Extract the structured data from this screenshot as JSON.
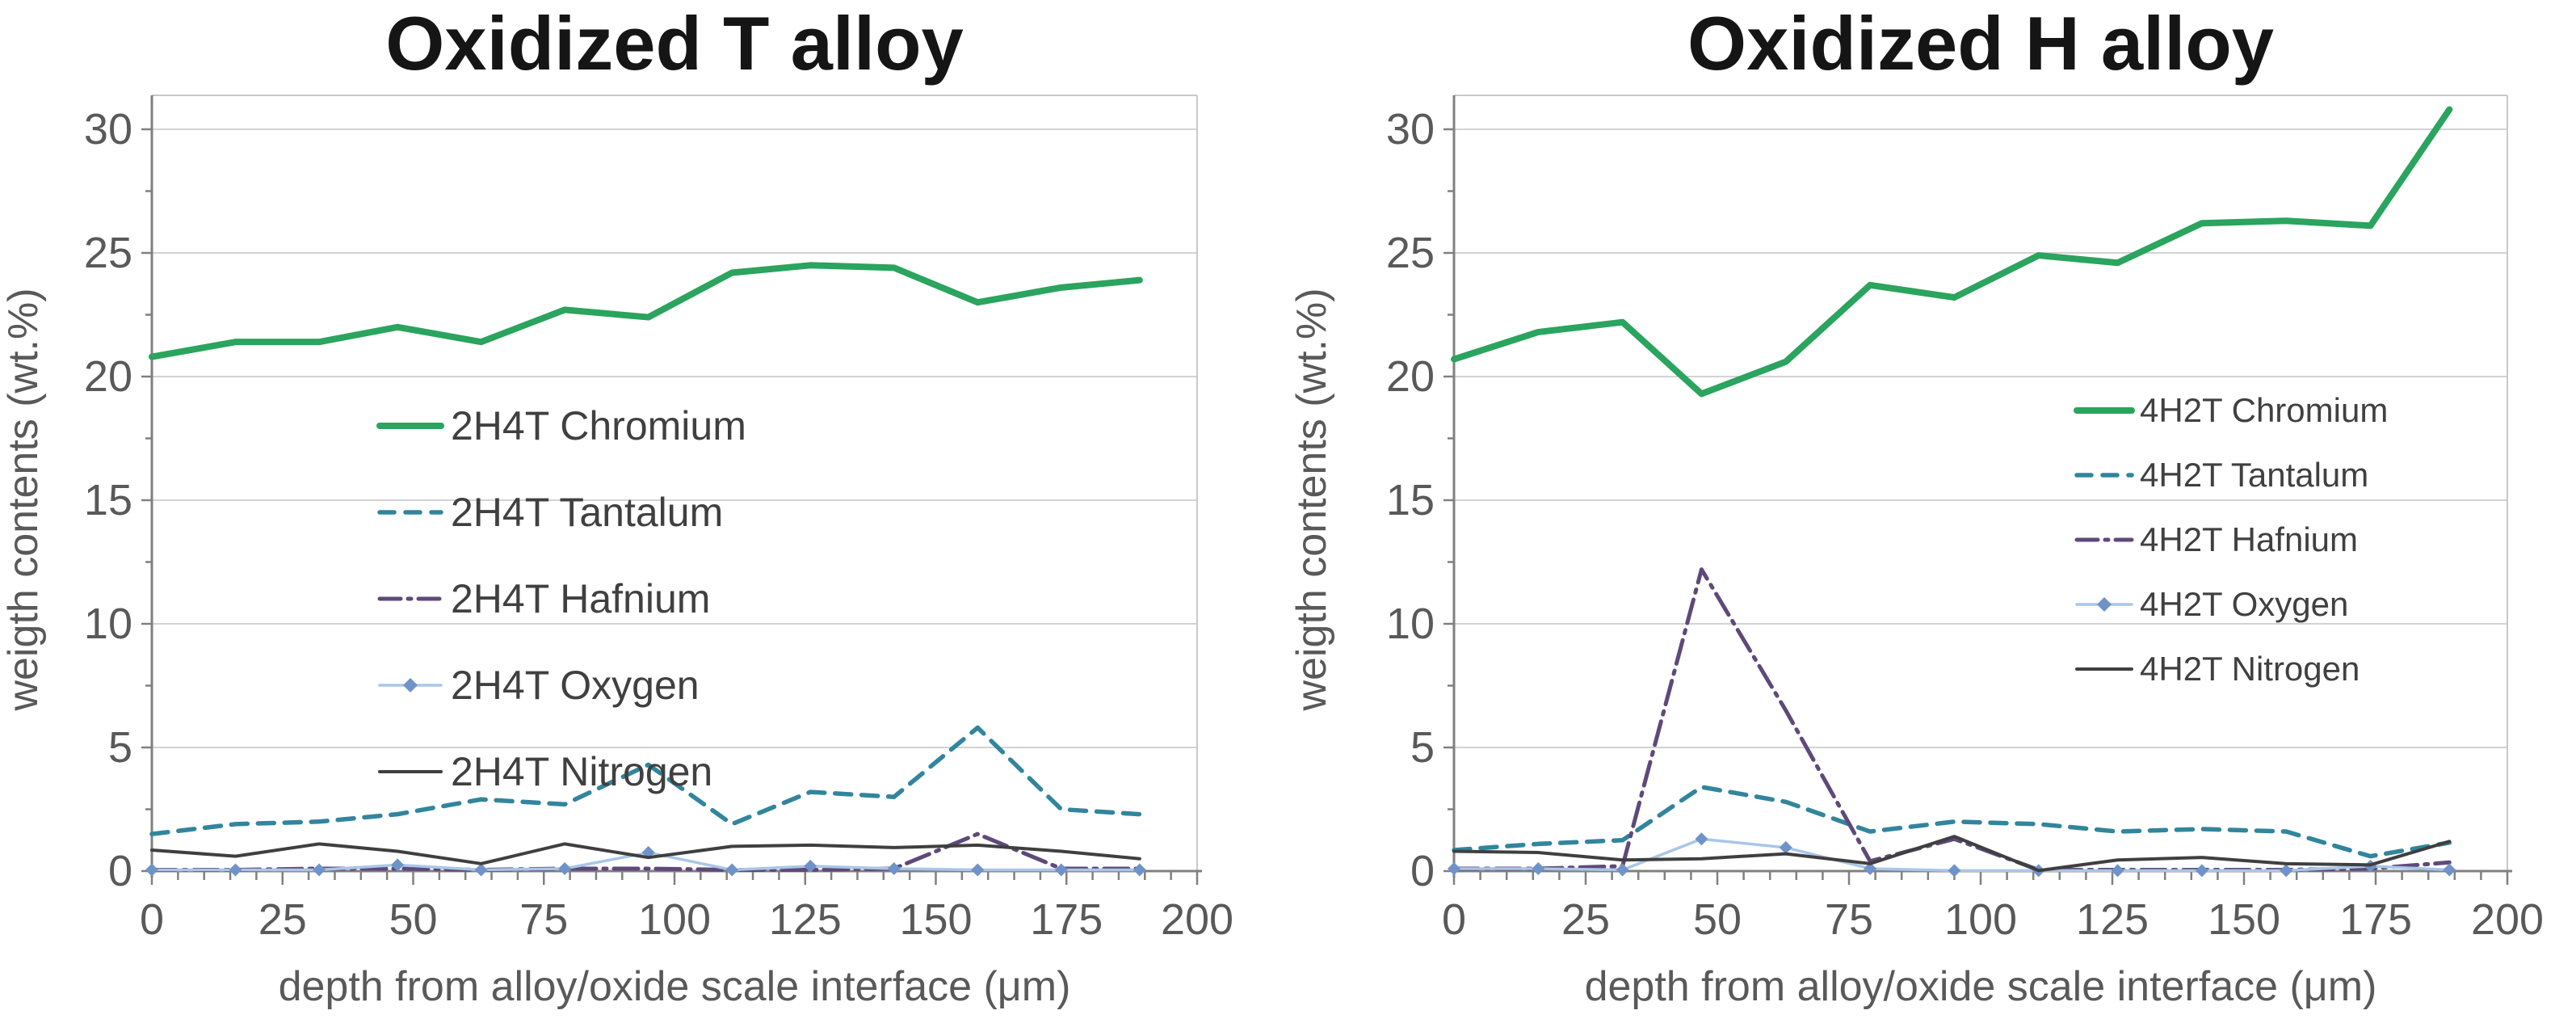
{
  "page": {
    "background": "#ffffff"
  },
  "colors": {
    "chromium": "#2aa45e",
    "tantalum": "#31859c",
    "hafnium": "#5f497a",
    "oxygen_line": "#a9c6e8",
    "oxygen_marker": "#6f93c9",
    "nitrogen": "#3f3f3f",
    "gridline": "#d3d3d3",
    "plot_border": "#c9c9c9",
    "axis": "#808080",
    "tick_label": "#595959",
    "axis_title": "#595959",
    "chart_title": "#151515",
    "legend_label": "#404040"
  },
  "chart_data": [
    {
      "type": "line",
      "title": "Oxidized T alloy",
      "xlabel": "depth from alloy/oxide scale interface (μm)",
      "ylabel": "weigth contents (wt.%)",
      "xlim": [
        0,
        200
      ],
      "ylim": [
        0,
        30
      ],
      "x_tick_step": 25,
      "x_minor_step": 5,
      "y_tick_step": 5,
      "y_minor_step": 2.5,
      "grid": "horizontal",
      "legend_position": "inside-left",
      "x": [
        0,
        16,
        32,
        47,
        63,
        79,
        95,
        111,
        126,
        142,
        158,
        174,
        189
      ],
      "series": [
        {
          "name": "2H4T Chromium",
          "element": "Chromium",
          "color_key": "chromium",
          "style": "solid-thick",
          "values": [
            20.8,
            21.4,
            21.4,
            22.0,
            21.4,
            22.7,
            22.4,
            24.2,
            24.5,
            24.4,
            23.0,
            23.6,
            23.9
          ]
        },
        {
          "name": "2H4T Tantalum",
          "element": "Tantalum",
          "color_key": "tantalum",
          "style": "dashed",
          "values": [
            1.5,
            1.9,
            2.0,
            2.3,
            2.9,
            2.7,
            4.3,
            1.9,
            3.2,
            3.0,
            5.8,
            2.5,
            2.3
          ]
        },
        {
          "name": "2H4T Hafnium",
          "element": "Hafnium",
          "color_key": "hafnium",
          "style": "dash-dot",
          "values": [
            0.05,
            0.05,
            0.1,
            0.1,
            0.05,
            0.1,
            0.1,
            0.05,
            0.05,
            0.1,
            1.5,
            0.1,
            0.1
          ]
        },
        {
          "name": "2H4T Oxygen",
          "element": "Oxygen",
          "color_key": "oxygen_line",
          "marker_color_key": "oxygen_marker",
          "style": "solid-marker",
          "values": [
            0.05,
            0.05,
            0.05,
            0.25,
            0.05,
            0.1,
            0.75,
            0.05,
            0.2,
            0.1,
            0.05,
            0.05,
            0.05
          ]
        },
        {
          "name": "2H4T Nitrogen",
          "element": "Nitrogen",
          "color_key": "nitrogen",
          "style": "solid",
          "values": [
            0.85,
            0.6,
            1.1,
            0.8,
            0.3,
            1.1,
            0.55,
            1.0,
            1.05,
            0.95,
            1.05,
            0.8,
            0.5
          ]
        }
      ]
    },
    {
      "type": "line",
      "title": "Oxidized H alloy",
      "xlabel": "depth from alloy/oxide scale interface (μm)",
      "ylabel": "weigth contents (wt.%)",
      "xlim": [
        0,
        200
      ],
      "ylim": [
        0,
        30
      ],
      "x_tick_step": 25,
      "x_minor_step": 5,
      "y_tick_step": 5,
      "y_minor_step": 2.5,
      "grid": "horizontal",
      "legend_position": "inside-right",
      "x": [
        0,
        16,
        32,
        47,
        63,
        79,
        95,
        111,
        126,
        142,
        158,
        174,
        189
      ],
      "series": [
        {
          "name": "4H2T Chromium",
          "element": "Chromium",
          "color_key": "chromium",
          "style": "solid-thick",
          "values": [
            20.7,
            21.8,
            22.2,
            19.3,
            20.6,
            23.7,
            23.2,
            24.9,
            24.6,
            26.2,
            26.3,
            26.1,
            30.8
          ]
        },
        {
          "name": "4H2T Tantalum",
          "element": "Tantalum",
          "color_key": "tantalum",
          "style": "dashed",
          "values": [
            0.85,
            1.1,
            1.25,
            3.4,
            2.8,
            1.6,
            2.0,
            1.9,
            1.6,
            1.7,
            1.6,
            0.6,
            1.15
          ]
        },
        {
          "name": "4H2T Hafnium",
          "element": "Hafnium",
          "color_key": "hafnium",
          "style": "dash-dot",
          "values": [
            0.1,
            0.1,
            0.2,
            12.2,
            6.5,
            0.4,
            1.3,
            0.05,
            0.05,
            0.05,
            0.05,
            0.1,
            0.35
          ]
        },
        {
          "name": "4H2T Oxygen",
          "element": "Oxygen",
          "color_key": "oxygen_line",
          "marker_color_key": "oxygen_marker",
          "style": "solid-marker",
          "values": [
            0.1,
            0.1,
            0.05,
            1.3,
            0.95,
            0.1,
            0.02,
            0.02,
            0.02,
            0.02,
            0.02,
            0.2,
            0.05
          ]
        },
        {
          "name": "4H2T Nitrogen",
          "element": "Nitrogen",
          "color_key": "nitrogen",
          "style": "solid",
          "values": [
            0.8,
            0.75,
            0.45,
            0.5,
            0.7,
            0.3,
            1.4,
            0.02,
            0.45,
            0.55,
            0.3,
            0.25,
            1.2
          ]
        }
      ]
    }
  ]
}
